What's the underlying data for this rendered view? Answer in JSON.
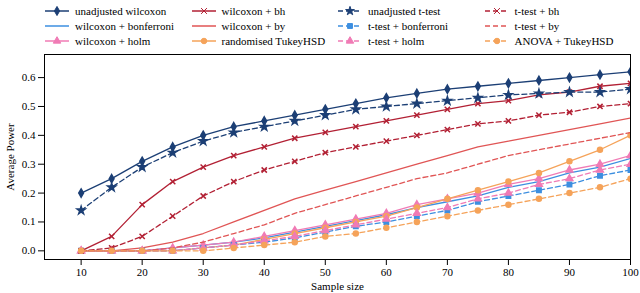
{
  "chart_data": {
    "type": "line",
    "x_label": "Sample size",
    "y_label": "Average Power",
    "x": [
      10,
      15,
      20,
      25,
      30,
      35,
      40,
      45,
      50,
      55,
      60,
      65,
      70,
      75,
      80,
      85,
      90,
      95,
      100
    ],
    "xlim": [
      4,
      100
    ],
    "xticks": [
      10,
      20,
      30,
      40,
      50,
      60,
      70,
      80,
      90,
      100
    ],
    "ylim": [
      -0.03,
      0.68
    ],
    "yticks": [
      {
        "value": 0,
        "label": "0.0"
      },
      0.1,
      0.2,
      0.3,
      0.4,
      0.5,
      0.6
    ],
    "legend": "top",
    "series": [
      {
        "name": "unadjusted wilcoxon",
        "color": "#1c3f75",
        "line_style": "solid",
        "marker": "diamond",
        "values": [
          0.2,
          0.25,
          0.31,
          0.36,
          0.4,
          0.43,
          0.45,
          0.47,
          0.49,
          0.51,
          0.53,
          0.545,
          0.56,
          0.57,
          0.58,
          0.59,
          0.6,
          0.61,
          0.62
        ]
      },
      {
        "name": "wilcoxon + bonferroni",
        "color": "#3d8fe0",
        "line_style": "solid",
        "marker": "none",
        "values": [
          0,
          0,
          0,
          0.01,
          0.02,
          0.03,
          0.045,
          0.065,
          0.085,
          0.105,
          0.125,
          0.15,
          0.17,
          0.19,
          0.22,
          0.24,
          0.27,
          0.29,
          0.32
        ]
      },
      {
        "name": "wilcoxon + holm",
        "color": "#f07bb5",
        "line_style": "solid",
        "marker": "triangle",
        "values": [
          0,
          0,
          0,
          0.01,
          0.02,
          0.03,
          0.05,
          0.07,
          0.09,
          0.11,
          0.13,
          0.16,
          0.18,
          0.2,
          0.23,
          0.25,
          0.28,
          0.3,
          0.33
        ]
      },
      {
        "name": "wilcoxon + bh",
        "color": "#b22034",
        "line_style": "solid",
        "marker": "times",
        "values": [
          0,
          0.05,
          0.16,
          0.24,
          0.29,
          0.33,
          0.36,
          0.39,
          0.41,
          0.43,
          0.45,
          0.47,
          0.49,
          0.51,
          0.52,
          0.54,
          0.55,
          0.57,
          0.58
        ]
      },
      {
        "name": "wilcoxon + by",
        "color": "#e05555",
        "line_style": "solid",
        "marker": "none",
        "values": [
          0,
          0,
          0.01,
          0.03,
          0.06,
          0.1,
          0.14,
          0.18,
          0.21,
          0.24,
          0.27,
          0.3,
          0.33,
          0.36,
          0.38,
          0.4,
          0.42,
          0.44,
          0.46
        ]
      },
      {
        "name": "randomised TukeyHSD",
        "color": "#f5a35a",
        "line_style": "solid",
        "marker": "circle",
        "values": [
          0,
          0,
          0,
          0,
          0.01,
          0.02,
          0.04,
          0.06,
          0.08,
          0.1,
          0.12,
          0.15,
          0.18,
          0.21,
          0.24,
          0.27,
          0.31,
          0.35,
          0.4
        ]
      },
      {
        "name": "unadjusted t-test",
        "color": "#1c3f75",
        "line_style": "dashed",
        "marker": "star",
        "values": [
          0.14,
          0.22,
          0.29,
          0.34,
          0.38,
          0.41,
          0.43,
          0.45,
          0.47,
          0.49,
          0.5,
          0.51,
          0.52,
          0.53,
          0.54,
          0.545,
          0.55,
          0.55,
          0.56
        ]
      },
      {
        "name": "t-test + bonferroni",
        "color": "#3d8fe0",
        "line_style": "dashed",
        "marker": "square",
        "values": [
          0,
          0,
          0,
          0,
          0.01,
          0.02,
          0.03,
          0.045,
          0.065,
          0.085,
          0.1,
          0.12,
          0.14,
          0.17,
          0.19,
          0.21,
          0.23,
          0.26,
          0.28
        ]
      },
      {
        "name": "t-test + holm",
        "color": "#f07bb5",
        "line_style": "dashed",
        "marker": "triangle",
        "values": [
          0,
          0,
          0,
          0,
          0.01,
          0.02,
          0.035,
          0.05,
          0.07,
          0.09,
          0.11,
          0.13,
          0.15,
          0.18,
          0.2,
          0.23,
          0.25,
          0.28,
          0.3
        ]
      },
      {
        "name": "t-test + bh",
        "color": "#b22034",
        "line_style": "dashed",
        "marker": "times",
        "values": [
          0,
          0.01,
          0.05,
          0.12,
          0.19,
          0.24,
          0.28,
          0.31,
          0.34,
          0.36,
          0.38,
          0.4,
          0.42,
          0.44,
          0.45,
          0.47,
          0.48,
          0.5,
          0.51
        ]
      },
      {
        "name": "t-test + by",
        "color": "#e05555",
        "line_style": "dashed",
        "marker": "none",
        "values": [
          0,
          0,
          0,
          0.01,
          0.03,
          0.06,
          0.09,
          0.13,
          0.16,
          0.19,
          0.22,
          0.25,
          0.27,
          0.3,
          0.33,
          0.35,
          0.37,
          0.39,
          0.41
        ]
      },
      {
        "name": "ANOVA + TukeyHSD",
        "color": "#f5a35a",
        "line_style": "dashed",
        "marker": "circle",
        "values": [
          0,
          0,
          0,
          0,
          0,
          0.01,
          0.02,
          0.03,
          0.05,
          0.06,
          0.08,
          0.1,
          0.12,
          0.14,
          0.16,
          0.18,
          0.2,
          0.22,
          0.25
        ]
      }
    ]
  }
}
